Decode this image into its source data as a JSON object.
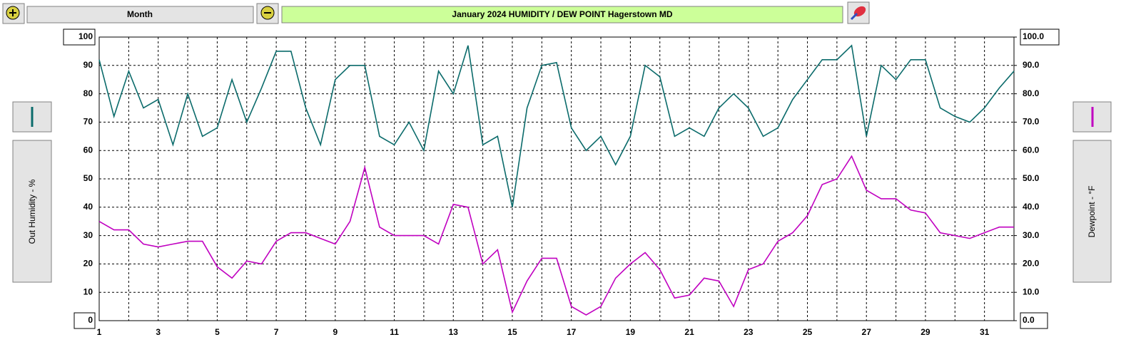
{
  "toolbar": {
    "period": "Month"
  },
  "chart_data": {
    "type": "line",
    "title": "January 2024  HUMIDITY / DEW POINT  Hagerstown MD",
    "ylabel": "Out Humidity - %",
    "y2label": "Dewpoint - °F",
    "x": [
      1,
      1.5,
      2,
      2.5,
      3,
      3.5,
      4,
      4.5,
      5,
      5.5,
      6,
      6.5,
      7,
      7.5,
      8,
      8.5,
      9,
      9.5,
      10,
      10.5,
      11,
      11.5,
      12,
      12.5,
      13,
      13.5,
      14,
      14.5,
      15,
      15.5,
      16,
      16.5,
      17,
      17.5,
      18,
      18.5,
      19,
      19.5,
      20,
      20.5,
      21,
      21.5,
      22,
      22.5,
      23,
      23.5,
      24,
      24.5,
      25,
      25.5,
      26,
      26.5,
      27,
      27.5,
      28,
      28.5,
      29,
      29.5,
      30,
      30.5,
      31,
      31.5,
      32
    ],
    "xlim": [
      1,
      32
    ],
    "xticks": [
      1,
      3,
      5,
      7,
      9,
      11,
      13,
      15,
      17,
      19,
      21,
      23,
      25,
      27,
      29,
      31
    ],
    "minor_xticks": [
      2,
      4,
      6,
      8,
      10,
      12,
      14,
      16,
      18,
      20,
      22,
      24,
      26,
      28,
      30,
      32
    ],
    "ylim": [
      0,
      100
    ],
    "yticks": [
      0,
      10,
      20,
      30,
      40,
      50,
      60,
      70,
      80,
      90,
      100
    ],
    "y2lim": [
      0,
      100
    ],
    "y2ticks": [
      {
        "value": 0,
        "label": "0.0"
      },
      {
        "value": 10,
        "label": "10.0"
      },
      {
        "value": 20,
        "label": "20.0"
      },
      {
        "value": 30,
        "label": "30.0"
      },
      {
        "value": 40,
        "label": "40.0"
      },
      {
        "value": 50,
        "label": "50.0"
      },
      {
        "value": 60,
        "label": "60.0"
      },
      {
        "value": 70,
        "label": "70.0"
      },
      {
        "value": 80,
        "label": "80.0"
      },
      {
        "value": 90,
        "label": "90.0"
      },
      {
        "value": 100,
        "label": "100.0"
      }
    ],
    "grid": true,
    "series": [
      {
        "name": "Out Humidity",
        "color": "#0b6b6b",
        "values": [
          92,
          72,
          88,
          75,
          78,
          62,
          80,
          65,
          68,
          85,
          70,
          82,
          95,
          95,
          75,
          62,
          85,
          90,
          90,
          65,
          62,
          70,
          60,
          88,
          80,
          97,
          62,
          65,
          40,
          75,
          90,
          91,
          68,
          60,
          65,
          55,
          65,
          90,
          86,
          65,
          68,
          65,
          75,
          80,
          75,
          65,
          68,
          78,
          85,
          92,
          92,
          97,
          65,
          90,
          85,
          92,
          92,
          75,
          72,
          70,
          75,
          82,
          88
        ]
      },
      {
        "name": "Dewpoint",
        "color": "#c000c0",
        "axis": "y2",
        "values": [
          35,
          32,
          32,
          27,
          26,
          27,
          28,
          28,
          19,
          15,
          21,
          20,
          28,
          31,
          31,
          29,
          27,
          35,
          54,
          33,
          30,
          30,
          30,
          27,
          41,
          40,
          20,
          25,
          3,
          14,
          22,
          22,
          5,
          2,
          5,
          15,
          20,
          24,
          18,
          8,
          9,
          15,
          14,
          5,
          18,
          20,
          28,
          31,
          37,
          48,
          50,
          58,
          46,
          43,
          43,
          39,
          38,
          31,
          30,
          29,
          31,
          33,
          33
        ]
      }
    ]
  }
}
